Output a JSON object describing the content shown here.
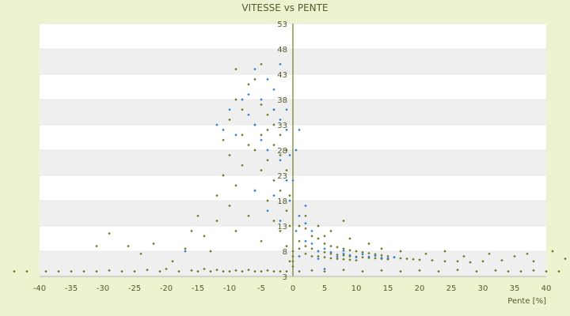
{
  "chart_data": {
    "type": "scatter",
    "title": "VITESSE vs PENTE",
    "xlabel": "Pente [%]",
    "ylabel": "",
    "xlim": [
      -40,
      40
    ],
    "ylim": [
      3,
      53
    ],
    "x_ticks": [
      -40,
      -35,
      -30,
      -25,
      -20,
      -15,
      -10,
      -5,
      0,
      5,
      10,
      15,
      20,
      25,
      30,
      35,
      40
    ],
    "y_ticks": [
      53,
      48,
      43,
      38,
      33,
      28,
      23,
      18,
      13,
      8,
      3
    ],
    "grid": "horizontal bands",
    "colors": {
      "background": "#eef2d0",
      "plot_bg": "#ffffff",
      "band": "#efefef",
      "series_a": "#6b7a1e",
      "series_b": "#2f7fd6",
      "text": "#555a2a"
    },
    "series": [
      {
        "points": [
          [
            -44,
            4.0
          ],
          [
            -42,
            4.0
          ],
          [
            -39,
            4.0
          ],
          [
            -37,
            4.0
          ],
          [
            -35,
            4.0
          ],
          [
            -33,
            4.0
          ],
          [
            -31,
            4.0
          ],
          [
            -29,
            4.2
          ],
          [
            -27,
            4.0
          ],
          [
            -25,
            4.0
          ],
          [
            -23,
            4.3
          ],
          [
            -21,
            4.0
          ],
          [
            -20,
            4.5
          ],
          [
            -18,
            4.0
          ],
          [
            -16,
            4.2
          ],
          [
            -15,
            4.0
          ],
          [
            -14,
            4.5
          ],
          [
            -13,
            4.0
          ],
          [
            -12,
            4.3
          ],
          [
            -11,
            4.0
          ],
          [
            -10,
            4.0
          ],
          [
            -9,
            4.2
          ],
          [
            -8,
            4.0
          ],
          [
            -7,
            4.3
          ],
          [
            -6,
            4.0
          ],
          [
            -5,
            4.0
          ],
          [
            -4,
            4.2
          ],
          [
            -3,
            4.0
          ],
          [
            -2,
            4.0
          ],
          [
            -1,
            4.0
          ],
          [
            -31,
            9.0
          ],
          [
            -29,
            11.5
          ],
          [
            -26,
            9.0
          ],
          [
            -24,
            7.5
          ],
          [
            -22,
            9.5
          ],
          [
            -19,
            6.0
          ],
          [
            -17,
            8.5
          ],
          [
            -16,
            12.0
          ],
          [
            -15,
            15.0
          ],
          [
            -14,
            11.0
          ],
          [
            -13,
            8.0
          ],
          [
            -12,
            14.0
          ],
          [
            -12,
            19.0
          ],
          [
            -11,
            23.0
          ],
          [
            -11,
            30.0
          ],
          [
            -10,
            17.0
          ],
          [
            -10,
            27.0
          ],
          [
            -10,
            34.0
          ],
          [
            -9,
            12.0
          ],
          [
            -9,
            21.0
          ],
          [
            -9,
            38.0
          ],
          [
            -9,
            44.0
          ],
          [
            -8,
            25.0
          ],
          [
            -8,
            31.0
          ],
          [
            -8,
            36.0
          ],
          [
            -7,
            15.0
          ],
          [
            -7,
            29.0
          ],
          [
            -7,
            41.0
          ],
          [
            -6,
            20.0
          ],
          [
            -6,
            28.0
          ],
          [
            -6,
            33.0
          ],
          [
            -6,
            42.0
          ],
          [
            -5,
            10.0
          ],
          [
            -5,
            24.0
          ],
          [
            -5,
            31.0
          ],
          [
            -5,
            37.0
          ],
          [
            -5,
            45.0
          ],
          [
            -4,
            18.0
          ],
          [
            -4,
            26.0
          ],
          [
            -4,
            32.0
          ],
          [
            -4,
            35.0
          ],
          [
            -3,
            14.0
          ],
          [
            -3,
            22.0
          ],
          [
            -3,
            29.0
          ],
          [
            -3,
            33.0
          ],
          [
            -3,
            36.0
          ],
          [
            -2,
            12.0
          ],
          [
            -2,
            20.0
          ],
          [
            -2,
            27.0
          ],
          [
            -2,
            31.0
          ],
          [
            -1,
            9.0
          ],
          [
            -1,
            16.0
          ],
          [
            -1,
            24.0
          ],
          [
            -1,
            28.0
          ],
          [
            -0.5,
            6.0
          ],
          [
            -0.5,
            13.0
          ],
          [
            -0.5,
            19.0
          ],
          [
            0,
            5.0
          ],
          [
            0,
            6.0
          ],
          [
            0,
            7.0
          ],
          [
            0,
            8.0
          ],
          [
            1,
            13.0
          ],
          [
            1,
            10.0
          ],
          [
            1,
            8.5
          ],
          [
            2,
            12.5
          ],
          [
            2,
            9.0
          ],
          [
            2,
            7.5
          ],
          [
            3,
            11.0
          ],
          [
            3,
            8.5
          ],
          [
            3,
            7.0
          ],
          [
            4,
            10.5
          ],
          [
            4,
            8.0
          ],
          [
            4,
            7.0
          ],
          [
            5,
            9.5
          ],
          [
            5,
            7.8
          ],
          [
            5,
            6.8
          ],
          [
            6,
            9.0
          ],
          [
            6,
            7.5
          ],
          [
            6,
            6.6
          ],
          [
            7,
            8.8
          ],
          [
            7,
            7.3
          ],
          [
            7,
            6.5
          ],
          [
            8,
            8.5
          ],
          [
            8,
            7.2
          ],
          [
            8,
            6.4
          ],
          [
            9,
            8.2
          ],
          [
            9,
            7.0
          ],
          [
            9,
            6.3
          ],
          [
            10,
            8.0
          ],
          [
            10,
            6.9
          ],
          [
            10,
            6.2
          ],
          [
            11,
            7.8
          ],
          [
            11,
            6.8
          ],
          [
            12,
            7.6
          ],
          [
            12,
            6.7
          ],
          [
            13,
            7.4
          ],
          [
            13,
            6.6
          ],
          [
            14,
            7.2
          ],
          [
            14,
            6.5
          ],
          [
            15,
            7.0
          ],
          [
            15,
            6.4
          ],
          [
            16,
            6.8
          ],
          [
            17,
            6.6
          ],
          [
            18,
            6.5
          ],
          [
            19,
            6.4
          ],
          [
            20,
            6.3
          ],
          [
            22,
            6.2
          ],
          [
            24,
            6.0
          ],
          [
            26,
            6.0
          ],
          [
            28,
            5.8
          ],
          [
            30,
            6.0
          ],
          [
            33,
            6.2
          ],
          [
            35,
            7.0
          ],
          [
            38,
            6.0
          ],
          [
            1,
            4.0
          ],
          [
            3,
            4.2
          ],
          [
            5,
            4.0
          ],
          [
            8,
            4.3
          ],
          [
            11,
            4.0
          ],
          [
            14,
            4.2
          ],
          [
            17,
            4.0
          ],
          [
            20,
            4.2
          ],
          [
            23,
            4.0
          ],
          [
            26,
            4.3
          ],
          [
            29,
            4.0
          ],
          [
            32,
            4.2
          ],
          [
            34,
            4.0
          ],
          [
            36,
            4.0
          ],
          [
            38,
            4.2
          ],
          [
            40,
            4.0
          ],
          [
            42,
            4.0
          ],
          [
            44,
            4.0
          ],
          [
            2,
            15.0
          ],
          [
            4,
            13.0
          ],
          [
            6,
            12.0
          ],
          [
            8,
            14.0
          ],
          [
            5,
            11.0
          ],
          [
            9,
            10.5
          ],
          [
            12,
            9.5
          ],
          [
            14,
            8.5
          ],
          [
            17,
            8.0
          ],
          [
            21,
            7.5
          ],
          [
            24,
            8.0
          ],
          [
            27,
            7.0
          ],
          [
            31,
            7.5
          ],
          [
            37,
            7.5
          ],
          [
            41,
            8.0
          ],
          [
            43,
            6.5
          ]
        ]
      },
      {
        "points": [
          [
            -12,
            33.0
          ],
          [
            -11,
            32.0
          ],
          [
            -10,
            36.0
          ],
          [
            -9,
            31.0
          ],
          [
            -8,
            38.0
          ],
          [
            -7,
            35.0
          ],
          [
            -7,
            39.0
          ],
          [
            -6,
            33.0
          ],
          [
            -6,
            44.0
          ],
          [
            -5,
            30.0
          ],
          [
            -5,
            38.0
          ],
          [
            -4,
            42.0
          ],
          [
            -4,
            28.0
          ],
          [
            -3,
            36.0
          ],
          [
            -3,
            40.0
          ],
          [
            -2,
            26.0
          ],
          [
            -2,
            34.0
          ],
          [
            -2,
            45.0
          ],
          [
            -1,
            22.0
          ],
          [
            -1,
            32.0
          ],
          [
            -1,
            36.0
          ],
          [
            -0.5,
            18.0
          ],
          [
            -0.5,
            27.0
          ],
          [
            -3,
            19.0
          ],
          [
            -4,
            16.0
          ],
          [
            -2,
            14.0
          ],
          [
            -6,
            20.0
          ],
          [
            -17,
            8.0
          ],
          [
            0,
            22.0
          ],
          [
            1,
            15.0
          ],
          [
            1,
            32.0
          ],
          [
            2,
            13.5
          ],
          [
            2,
            10.0
          ],
          [
            3,
            12.0
          ],
          [
            3,
            9.5
          ],
          [
            4,
            8.0
          ],
          [
            4,
            6.5
          ],
          [
            5,
            8.5
          ],
          [
            5,
            4.5
          ],
          [
            6,
            7.8
          ],
          [
            7,
            6.9
          ],
          [
            8,
            7.5
          ],
          [
            8,
            8.1
          ],
          [
            9,
            7.2
          ],
          [
            10,
            6.8
          ],
          [
            11,
            7.4
          ],
          [
            12,
            6.9
          ],
          [
            13,
            7.1
          ],
          [
            14,
            6.7
          ],
          [
            15,
            6.6
          ],
          [
            16,
            6.8
          ],
          [
            0.5,
            28.0
          ],
          [
            2,
            17.0
          ],
          [
            0.5,
            12.0
          ],
          [
            1,
            7.0
          ]
        ]
      }
    ]
  }
}
